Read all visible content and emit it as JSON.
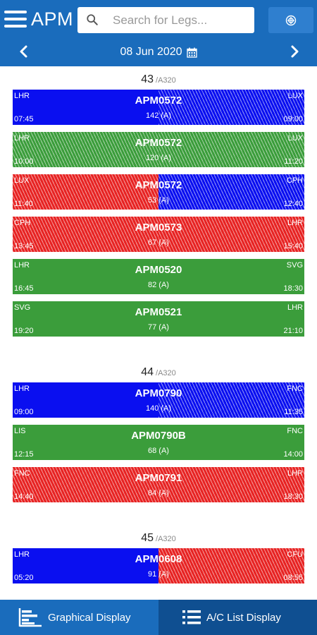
{
  "header": {
    "title": "APM",
    "search_placeholder": "Search for Legs...",
    "date": "08 Jun 2020",
    "icons": {
      "menu": "hamburger-icon",
      "search": "search-icon",
      "filter": "filter-icon",
      "prev": "chevron-left-icon",
      "next": "chevron-right-icon",
      "calendar": "calendar-icon"
    }
  },
  "colors": {
    "header": "#1a6cbc",
    "blue_leg": "#0a0ff0",
    "green_leg": "#3b9d3b",
    "red_leg": "#e72323",
    "list_tab": "#0f4f91"
  },
  "groups": [
    {
      "tail": "43",
      "type": "/A320",
      "legs": [
        {
          "from": "LHR",
          "to": "LUX",
          "dep": "07:45",
          "arr": "09:00",
          "flight": "APM0572",
          "pax": "142 (A)",
          "left": "blue",
          "right": "blue",
          "left_hatch": false,
          "right_hatch": true
        },
        {
          "from": "LHR",
          "to": "LUX",
          "dep": "10:00",
          "arr": "11:20",
          "flight": "APM0572",
          "pax": "120 (A)",
          "left": "green",
          "right": "green",
          "left_hatch": true,
          "right_hatch": true
        },
        {
          "from": "LUX",
          "to": "CPH",
          "dep": "11:40",
          "arr": "12:40",
          "flight": "APM0572",
          "pax": "53 (A)",
          "left": "red",
          "right": "blue",
          "left_hatch": true,
          "right_hatch": true
        },
        {
          "from": "CPH",
          "to": "LHR",
          "dep": "13:45",
          "arr": "15:40",
          "flight": "APM0573",
          "pax": "67 (A)",
          "left": "red",
          "right": "red",
          "left_hatch": true,
          "right_hatch": true
        },
        {
          "from": "LHR",
          "to": "SVG",
          "dep": "16:45",
          "arr": "18:30",
          "flight": "APM0520",
          "pax": "82 (A)",
          "left": "green",
          "right": "green",
          "left_hatch": false,
          "right_hatch": false
        },
        {
          "from": "SVG",
          "to": "LHR",
          "dep": "19:20",
          "arr": "21:10",
          "flight": "APM0521",
          "pax": "77 (A)",
          "left": "green",
          "right": "green",
          "left_hatch": false,
          "right_hatch": false
        }
      ]
    },
    {
      "tail": "44",
      "type": "/A320",
      "legs": [
        {
          "from": "LHR",
          "to": "FNC",
          "dep": "09:00",
          "arr": "11:35",
          "flight": "APM0790",
          "pax": "140 (A)",
          "left": "blue",
          "right": "blue",
          "left_hatch": false,
          "right_hatch": true
        },
        {
          "from": "LIS",
          "to": "FNC",
          "dep": "12:15",
          "arr": "14:00",
          "flight": "APM0790B",
          "pax": "68 (A)",
          "left": "green",
          "right": "green",
          "left_hatch": false,
          "right_hatch": false
        },
        {
          "from": "FNC",
          "to": "LHR",
          "dep": "14:40",
          "arr": "18:30",
          "flight": "APM0791",
          "pax": "84 (A)",
          "left": "red",
          "right": "red",
          "left_hatch": true,
          "right_hatch": true
        }
      ]
    },
    {
      "tail": "45",
      "type": "/A320",
      "legs": [
        {
          "from": "LHR",
          "to": "CFU",
          "dep": "05:20",
          "arr": "08:55",
          "flight": "APM0608",
          "pax": "91 (A)",
          "left": "blue",
          "right": "red",
          "left_hatch": false,
          "right_hatch": true
        }
      ]
    }
  ],
  "tabs": [
    {
      "label": "Graphical Display",
      "icon": "bar-chart-icon",
      "active": true
    },
    {
      "label": "A/C List Display",
      "icon": "list-icon",
      "active": false
    }
  ]
}
